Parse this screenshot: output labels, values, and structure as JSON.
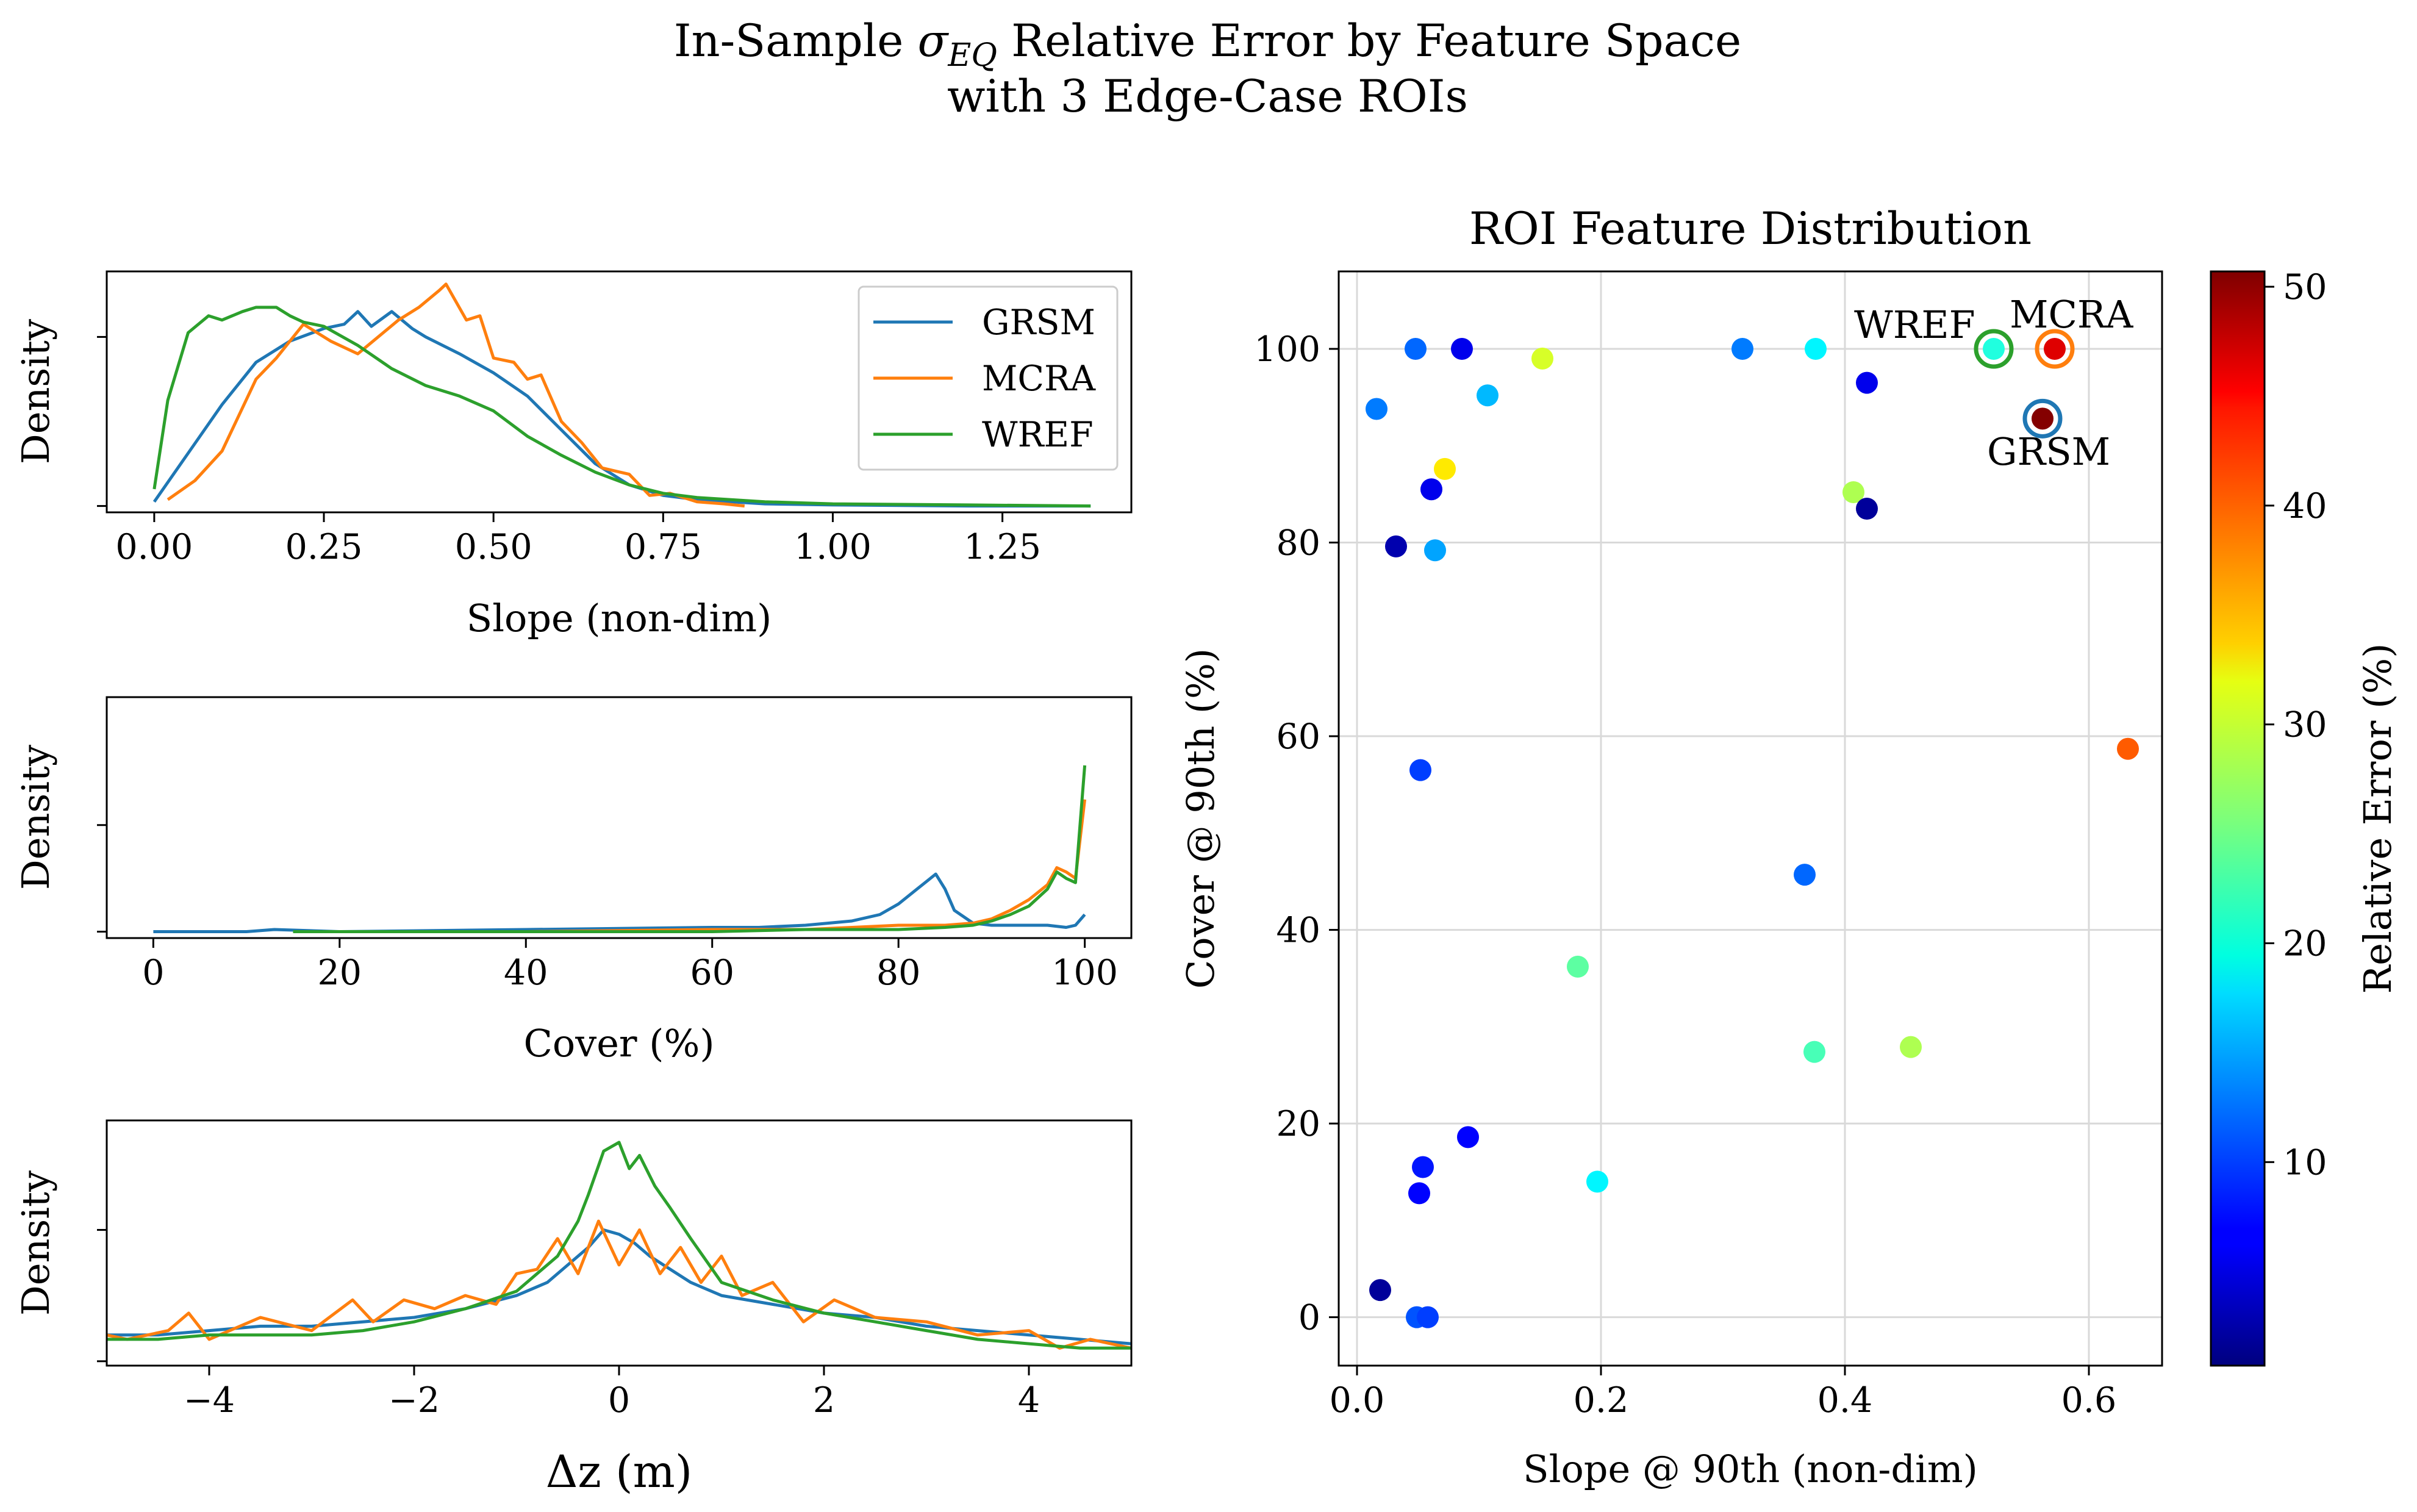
{
  "title": {
    "line1_prefix": "In-Sample ",
    "sigma": "σ",
    "sigma_sub": "EQ",
    "line1_suffix": " Relative Error by Feature Space",
    "line2": "with 3 Edge-Case ROIs"
  },
  "colors": {
    "GRSM": "#1f77b4",
    "MCRA": "#ff7f0e",
    "WREF": "#2ca02c",
    "grid": "#d9d9d9"
  },
  "legend": [
    "GRSM",
    "MCRA",
    "WREF"
  ],
  "chart_data": [
    {
      "id": "slope",
      "type": "line",
      "xlabel": "Slope (non-dim)",
      "ylabel": "Density",
      "xlim": [
        -0.07,
        1.44
      ],
      "ylim": [
        -0.03,
        1.11
      ],
      "xticks": [
        0.0,
        0.25,
        0.5,
        0.75,
        1.0,
        1.25
      ],
      "xtick_labels": [
        "0.00",
        "0.25",
        "0.50",
        "0.75",
        "1.00",
        "1.25"
      ],
      "yticks": [
        0,
        0.8
      ],
      "series": [
        {
          "name": "GRSM",
          "x": [
            0,
            0.05,
            0.1,
            0.15,
            0.2,
            0.25,
            0.28,
            0.3,
            0.32,
            0.35,
            0.38,
            0.4,
            0.45,
            0.5,
            0.55,
            0.6,
            0.65,
            0.7,
            0.75,
            0.8,
            0.9,
            1.0,
            1.2,
            1.38
          ],
          "values": [
            0.02,
            0.25,
            0.48,
            0.68,
            0.78,
            0.84,
            0.86,
            0.92,
            0.85,
            0.92,
            0.84,
            0.8,
            0.72,
            0.63,
            0.52,
            0.36,
            0.2,
            0.1,
            0.05,
            0.03,
            0.01,
            0.005,
            0.0,
            0.0
          ]
        },
        {
          "name": "MCRA",
          "x": [
            0.02,
            0.06,
            0.1,
            0.15,
            0.18,
            0.22,
            0.26,
            0.3,
            0.33,
            0.36,
            0.39,
            0.42,
            0.43,
            0.46,
            0.48,
            0.5,
            0.53,
            0.55,
            0.57,
            0.6,
            0.63,
            0.66,
            0.7,
            0.73,
            0.76,
            0.8,
            0.84,
            0.87
          ],
          "values": [
            0.03,
            0.12,
            0.26,
            0.6,
            0.7,
            0.86,
            0.78,
            0.72,
            0.8,
            0.88,
            0.94,
            1.02,
            1.05,
            0.88,
            0.9,
            0.7,
            0.68,
            0.6,
            0.62,
            0.4,
            0.3,
            0.18,
            0.15,
            0.05,
            0.06,
            0.02,
            0.01,
            0.0
          ]
        },
        {
          "name": "WREF",
          "x": [
            0,
            0.02,
            0.05,
            0.08,
            0.1,
            0.13,
            0.15,
            0.18,
            0.2,
            0.22,
            0.25,
            0.3,
            0.35,
            0.4,
            0.45,
            0.5,
            0.55,
            0.6,
            0.65,
            0.7,
            0.75,
            0.8,
            0.9,
            1.0,
            1.2,
            1.38
          ],
          "values": [
            0.08,
            0.5,
            0.82,
            0.9,
            0.88,
            0.92,
            0.94,
            0.94,
            0.9,
            0.87,
            0.85,
            0.76,
            0.65,
            0.57,
            0.52,
            0.45,
            0.33,
            0.24,
            0.16,
            0.1,
            0.06,
            0.04,
            0.02,
            0.01,
            0.005,
            0.0
          ]
        }
      ]
    },
    {
      "id": "cover",
      "type": "line",
      "xlabel": "Cover (%)",
      "ylabel": "Density",
      "xlim": [
        -5,
        105
      ],
      "ylim": [
        -0.03,
        1.1
      ],
      "xticks": [
        0,
        20,
        40,
        60,
        80,
        100
      ],
      "xtick_labels": [
        "0",
        "20",
        "40",
        "60",
        "80",
        "100"
      ],
      "yticks": [
        0,
        0.5
      ],
      "series": [
        {
          "name": "GRSM",
          "x": [
            0,
            10,
            13,
            20,
            40,
            60,
            65,
            70,
            75,
            78,
            80,
            82,
            84,
            85,
            86,
            88,
            90,
            93,
            96,
            98,
            99,
            100
          ],
          "values": [
            0.0,
            0.0,
            0.01,
            0.0,
            0.01,
            0.02,
            0.02,
            0.03,
            0.05,
            0.08,
            0.13,
            0.2,
            0.27,
            0.2,
            0.1,
            0.04,
            0.03,
            0.03,
            0.03,
            0.02,
            0.03,
            0.08
          ]
        },
        {
          "name": "MCRA",
          "x": [
            15,
            40,
            60,
            70,
            75,
            80,
            85,
            88,
            90,
            92,
            94,
            96,
            97,
            98,
            99,
            100
          ],
          "values": [
            0.0,
            0.0,
            0.01,
            0.01,
            0.02,
            0.03,
            0.03,
            0.04,
            0.06,
            0.1,
            0.15,
            0.22,
            0.3,
            0.28,
            0.25,
            0.62
          ]
        },
        {
          "name": "WREF",
          "x": [
            15,
            40,
            60,
            70,
            80,
            85,
            88,
            90,
            92,
            94,
            96,
            97,
            98,
            99,
            100
          ],
          "values": [
            0.0,
            0.0,
            0.0,
            0.01,
            0.01,
            0.02,
            0.03,
            0.05,
            0.08,
            0.12,
            0.2,
            0.28,
            0.25,
            0.23,
            0.78
          ]
        }
      ]
    },
    {
      "id": "dz",
      "type": "line",
      "xlabel": "Δz (m)",
      "ylabel": "Density",
      "xlim": [
        -5,
        5
      ],
      "ylim": [
        -0.01,
        0.55
      ],
      "xticks": [
        -4,
        -2,
        0,
        2,
        4
      ],
      "xtick_labels": [
        "−4",
        "−2",
        "0",
        "2",
        "4"
      ],
      "yticks": [
        0,
        0.3
      ],
      "series": [
        {
          "name": "GRSM",
          "x": [
            -5,
            -4.5,
            -4,
            -3.5,
            -3,
            -2.5,
            -2,
            -1.5,
            -1,
            -0.7,
            -0.5,
            -0.3,
            -0.15,
            0,
            0.15,
            0.3,
            0.5,
            0.7,
            1,
            1.5,
            2,
            2.5,
            3,
            3.5,
            4,
            4.5,
            5
          ],
          "values": [
            0.06,
            0.06,
            0.07,
            0.08,
            0.08,
            0.09,
            0.1,
            0.12,
            0.15,
            0.18,
            0.22,
            0.26,
            0.3,
            0.29,
            0.27,
            0.24,
            0.21,
            0.18,
            0.15,
            0.13,
            0.11,
            0.1,
            0.08,
            0.07,
            0.06,
            0.05,
            0.04
          ]
        },
        {
          "name": "MCRA",
          "x": [
            -5,
            -4.8,
            -4.4,
            -4.2,
            -4,
            -3.5,
            -3,
            -2.6,
            -2.4,
            -2.1,
            -1.8,
            -1.5,
            -1.2,
            -1,
            -0.8,
            -0.6,
            -0.4,
            -0.2,
            0,
            0.2,
            0.4,
            0.6,
            0.8,
            1,
            1.2,
            1.5,
            1.8,
            2.1,
            2.5,
            3,
            3.5,
            4,
            4.3,
            4.6,
            5
          ],
          "values": [
            0.06,
            0.05,
            0.07,
            0.11,
            0.05,
            0.1,
            0.07,
            0.14,
            0.09,
            0.14,
            0.12,
            0.15,
            0.13,
            0.2,
            0.21,
            0.28,
            0.2,
            0.32,
            0.22,
            0.3,
            0.2,
            0.26,
            0.18,
            0.24,
            0.15,
            0.18,
            0.09,
            0.14,
            0.1,
            0.09,
            0.06,
            0.07,
            0.03,
            0.05,
            0.03
          ]
        },
        {
          "name": "WREF",
          "x": [
            -5,
            -4.5,
            -4,
            -3.5,
            -3,
            -2.5,
            -2,
            -1.5,
            -1,
            -0.6,
            -0.4,
            -0.3,
            -0.15,
            0,
            0.1,
            0.2,
            0.35,
            0.5,
            0.7,
            1,
            1.5,
            2,
            2.5,
            3,
            3.5,
            4,
            4.5,
            5
          ],
          "values": [
            0.05,
            0.05,
            0.06,
            0.06,
            0.06,
            0.07,
            0.09,
            0.12,
            0.16,
            0.24,
            0.32,
            0.38,
            0.48,
            0.5,
            0.44,
            0.47,
            0.4,
            0.35,
            0.28,
            0.18,
            0.14,
            0.11,
            0.09,
            0.07,
            0.05,
            0.04,
            0.03,
            0.03
          ]
        }
      ]
    },
    {
      "id": "roi",
      "type": "scatter",
      "title": "ROI Feature Distribution",
      "xlabel": "Slope @ 90th (non-dim)",
      "ylabel": "Cover @ 90th (%)",
      "xlim": [
        -0.015,
        0.66
      ],
      "ylim": [
        -5,
        108
      ],
      "xticks": [
        0.0,
        0.2,
        0.4,
        0.6
      ],
      "xtick_labels": [
        "0.0",
        "0.2",
        "0.4",
        "0.6"
      ],
      "yticks": [
        0,
        20,
        40,
        60,
        80,
        100
      ],
      "ytick_labels": [
        "0",
        "20",
        "40",
        "60",
        "80",
        "100"
      ],
      "colorbar": {
        "label": "Relative Error (%)",
        "min": 0.7,
        "max": 50.7,
        "ticks": [
          10,
          20,
          30,
          40,
          50
        ],
        "tick_labels": [
          "10",
          "20",
          "30",
          "40",
          "50"
        ]
      },
      "points": [
        {
          "x": 0.048,
          "y": 100,
          "err": 12
        },
        {
          "x": 0.086,
          "y": 100,
          "err": 6
        },
        {
          "x": 0.316,
          "y": 100,
          "err": 13
        },
        {
          "x": 0.376,
          "y": 100,
          "err": 19
        },
        {
          "x": 0.152,
          "y": 99,
          "err": 30
        },
        {
          "x": 0.016,
          "y": 93.8,
          "err": 13
        },
        {
          "x": 0.107,
          "y": 95.2,
          "err": 16
        },
        {
          "x": 0.418,
          "y": 96.5,
          "err": 6
        },
        {
          "x": 0.072,
          "y": 87.6,
          "err": 33
        },
        {
          "x": 0.061,
          "y": 85.5,
          "err": 6
        },
        {
          "x": 0.407,
          "y": 85.2,
          "err": 28
        },
        {
          "x": 0.418,
          "y": 83.5,
          "err": 2
        },
        {
          "x": 0.032,
          "y": 79.6,
          "err": 3
        },
        {
          "x": 0.064,
          "y": 79.2,
          "err": 15
        },
        {
          "x": 0.632,
          "y": 58.7,
          "err": 40
        },
        {
          "x": 0.052,
          "y": 56.5,
          "err": 10
        },
        {
          "x": 0.367,
          "y": 45.7,
          "err": 12
        },
        {
          "x": 0.181,
          "y": 36.2,
          "err": 24
        },
        {
          "x": 0.454,
          "y": 27.9,
          "err": 28
        },
        {
          "x": 0.375,
          "y": 27.4,
          "err": 23
        },
        {
          "x": 0.091,
          "y": 18.6,
          "err": 7
        },
        {
          "x": 0.054,
          "y": 15.5,
          "err": 8
        },
        {
          "x": 0.051,
          "y": 12.8,
          "err": 7
        },
        {
          "x": 0.197,
          "y": 14,
          "err": 19
        },
        {
          "x": 0.019,
          "y": 2.8,
          "err": 2
        },
        {
          "x": 0.049,
          "y": 0,
          "err": 11
        },
        {
          "x": 0.058,
          "y": 0,
          "err": 10
        }
      ],
      "highlighted": [
        {
          "name": "GRSM",
          "x": 0.562,
          "y": 92.8,
          "err": 50.5
        },
        {
          "name": "MCRA",
          "x": 0.572,
          "y": 100,
          "err": 46
        },
        {
          "name": "WREF",
          "x": 0.522,
          "y": 100,
          "err": 21
        }
      ]
    }
  ]
}
